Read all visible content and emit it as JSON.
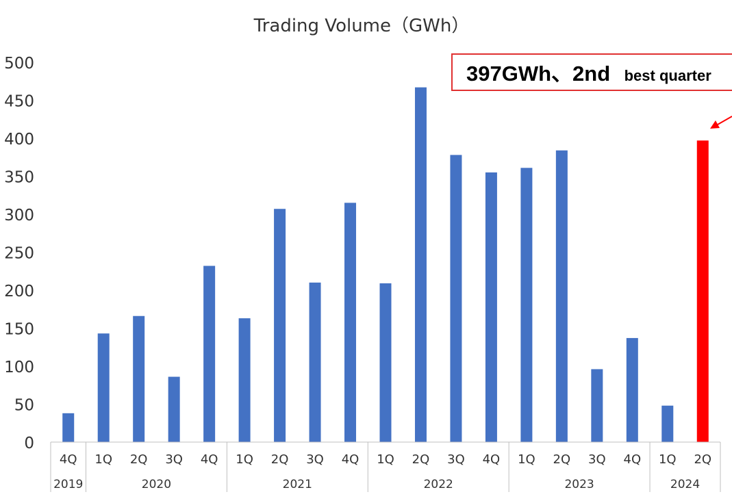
{
  "chart_data": {
    "type": "bar",
    "title": "Trading Volume（GWh）",
    "xlabel": "",
    "ylabel": "",
    "ylim": [
      0,
      500
    ],
    "yticks": [
      0,
      50,
      100,
      150,
      200,
      250,
      300,
      350,
      400,
      450,
      500
    ],
    "grid": false,
    "legend": "none",
    "categories": [
      "4Q",
      "1Q",
      "2Q",
      "3Q",
      "4Q",
      "1Q",
      "2Q",
      "3Q",
      "4Q",
      "1Q",
      "2Q",
      "3Q",
      "4Q",
      "1Q",
      "2Q",
      "3Q",
      "4Q",
      "1Q",
      "2Q"
    ],
    "year_groups": [
      {
        "label": "2019",
        "count": 1
      },
      {
        "label": "2020",
        "count": 4
      },
      {
        "label": "2021",
        "count": 4
      },
      {
        "label": "2022",
        "count": 4
      },
      {
        "label": "2023",
        "count": 4
      },
      {
        "label": "2024",
        "count": 2
      }
    ],
    "values": [
      38,
      143,
      166,
      86,
      232,
      163,
      307,
      210,
      315,
      209,
      467,
      378,
      355,
      361,
      384,
      96,
      137,
      48,
      397
    ],
    "highlight_index": 18,
    "colors": {
      "bar": "#4472C4",
      "highlight": "#FF0000",
      "callout_border": "#E03030",
      "axis": "#BFBFBF"
    },
    "annotation": {
      "main": "397GWh、2nd",
      "small": "best quarter"
    }
  }
}
